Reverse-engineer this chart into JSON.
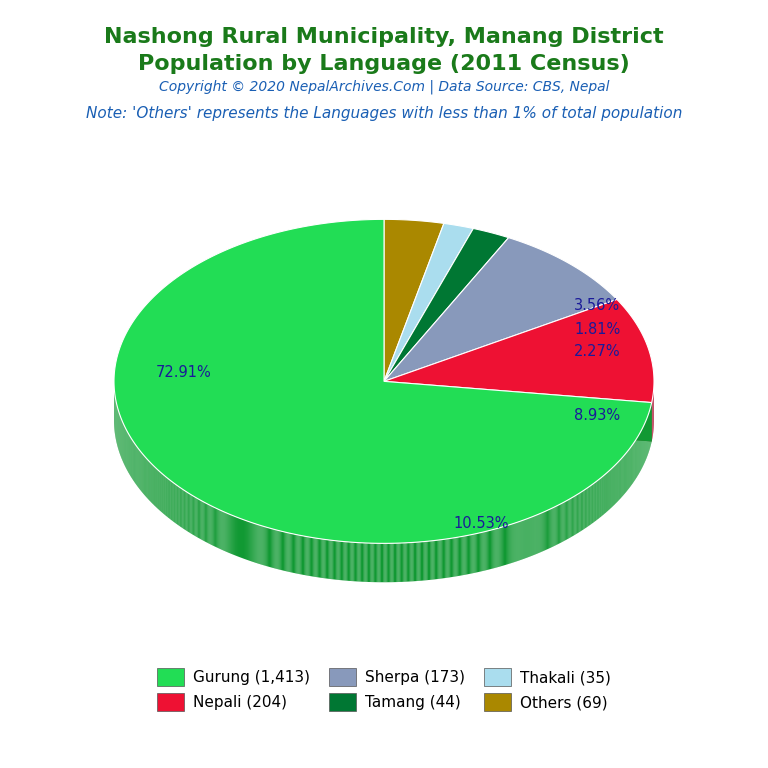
{
  "title_line1": "Nashong Rural Municipality, Manang District",
  "title_line2": "Population by Language (2011 Census)",
  "title_color": "#1a7a1a",
  "copyright_text": "Copyright © 2020 NepalArchives.Com | Data Source: CBS, Nepal",
  "copyright_color": "#1a5fb4",
  "note_text": "Note: 'Others' represents the Languages with less than 1% of total population",
  "note_color": "#1a5fb4",
  "labels": [
    "Gurung (1,413)",
    "Nepali (204)",
    "Sherpa (173)",
    "Tamang (44)",
    "Thakali (35)",
    "Others (69)"
  ],
  "values": [
    1413,
    204,
    173,
    44,
    35,
    69
  ],
  "percentages": [
    "72.91%",
    "10.53%",
    "8.93%",
    "2.27%",
    "1.81%",
    "3.56%"
  ],
  "colors": [
    "#22dd55",
    "#ee1133",
    "#8899bb",
    "#007733",
    "#aaddee",
    "#aa8800"
  ],
  "shadow_colors": [
    "#119933",
    "#aa0022",
    "#445577",
    "#004422",
    "#77aacc",
    "#776600"
  ],
  "pct_color": "#1a1a99",
  "legend_order": [
    0,
    1,
    2,
    3,
    4,
    5
  ],
  "background_color": "#ffffff",
  "title_fontsize": 16,
  "copyright_fontsize": 10,
  "note_fontsize": 11
}
